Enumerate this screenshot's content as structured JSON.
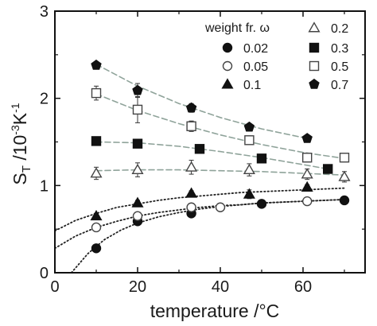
{
  "chart_data": {
    "type": "scatter",
    "title": "",
    "xlabel": "temperature /°C",
    "ylabel": {
      "main": "S",
      "sub": "T",
      "unit_a": " /10",
      "sup_a": "-3",
      "unit_b": "K",
      "sup_b": "-1"
    },
    "xlim": [
      0,
      75
    ],
    "ylim": [
      0,
      3
    ],
    "xticks": [
      0,
      20,
      40,
      60
    ],
    "yticks": [
      0,
      1,
      2,
      3
    ],
    "grid": false,
    "legend_title": "weight fr. ω",
    "legend_position": "top-right",
    "series": [
      {
        "name": "0.02",
        "marker": "circle-filled",
        "x": [
          10,
          20,
          33,
          50,
          70
        ],
        "y": [
          0.28,
          0.59,
          0.68,
          0.79,
          0.83
        ],
        "yerr": [
          0.02,
          0.03,
          0.03,
          0.03,
          0.03
        ],
        "fit": {
          "style": "dotted",
          "color": "#222222",
          "x": [
            4,
            8,
            12,
            16,
            20,
            25,
            30,
            35,
            40,
            45,
            50,
            55,
            60,
            65,
            70
          ],
          "y": [
            0.0,
            0.22,
            0.38,
            0.49,
            0.57,
            0.64,
            0.69,
            0.73,
            0.76,
            0.78,
            0.8,
            0.81,
            0.82,
            0.83,
            0.84
          ]
        }
      },
      {
        "name": "0.05",
        "marker": "circle-open",
        "x": [
          10,
          20,
          33,
          40,
          61
        ],
        "y": [
          0.52,
          0.65,
          0.75,
          0.75,
          0.82
        ],
        "yerr": [
          0.03,
          0.03,
          0.03,
          0.03,
          0.04
        ],
        "fit": {
          "style": "dotted",
          "color": "#222222",
          "x": [
            0,
            5,
            10,
            15,
            20,
            25,
            30,
            35,
            40,
            45,
            50,
            55,
            60,
            65,
            70
          ],
          "y": [
            0.28,
            0.42,
            0.52,
            0.59,
            0.65,
            0.69,
            0.72,
            0.75,
            0.77,
            0.78,
            0.8,
            0.81,
            0.82,
            0.83,
            0.84
          ]
        }
      },
      {
        "name": "0.1",
        "marker": "triangle-filled",
        "x": [
          10,
          20,
          33,
          47,
          61
        ],
        "y": [
          0.65,
          0.8,
          0.91,
          0.9,
          0.98
        ],
        "yerr": [
          0.03,
          0.03,
          0.03,
          0.05,
          0.03
        ],
        "fit": {
          "style": "dotted",
          "color": "#222222",
          "x": [
            0,
            5,
            10,
            15,
            20,
            25,
            30,
            35,
            40,
            45,
            50,
            55,
            60,
            65,
            70
          ],
          "y": [
            0.48,
            0.6,
            0.68,
            0.75,
            0.79,
            0.83,
            0.86,
            0.88,
            0.9,
            0.92,
            0.93,
            0.94,
            0.95,
            0.96,
            0.97
          ]
        }
      },
      {
        "name": "0.2",
        "marker": "triangle-open",
        "x": [
          10,
          20,
          33,
          47,
          61,
          70
        ],
        "y": [
          1.14,
          1.18,
          1.21,
          1.18,
          1.13,
          1.1
        ],
        "yerr": [
          0.07,
          0.08,
          0.08,
          0.07,
          0.06,
          0.06
        ],
        "fit": {
          "style": "dashed",
          "color": "#8fa39a",
          "x": [
            10,
            20,
            30,
            40,
            50,
            60,
            70
          ],
          "y": [
            1.17,
            1.18,
            1.18,
            1.17,
            1.16,
            1.14,
            1.12
          ]
        }
      },
      {
        "name": "0.3",
        "marker": "square-filled",
        "x": [
          10,
          20,
          35,
          50,
          66
        ],
        "y": [
          1.51,
          1.48,
          1.42,
          1.31,
          1.19
        ],
        "yerr": [
          0.02,
          0.02,
          0.03,
          0.03,
          0.03
        ],
        "fit": {
          "style": "dashed",
          "color": "#8fa39a",
          "x": [
            10,
            20,
            30,
            40,
            50,
            60,
            66
          ],
          "y": [
            1.5,
            1.49,
            1.45,
            1.39,
            1.32,
            1.24,
            1.19
          ]
        }
      },
      {
        "name": "0.5",
        "marker": "square-open",
        "x": [
          10,
          20,
          33,
          47,
          61,
          70
        ],
        "y": [
          2.06,
          1.87,
          1.68,
          1.52,
          1.32,
          1.32
        ],
        "yerr": [
          0.08,
          0.15,
          0.06,
          0.05,
          0.04,
          0.04
        ],
        "fit": {
          "style": "dashed",
          "color": "#8fa39a",
          "x": [
            10,
            20,
            30,
            40,
            50,
            60,
            70
          ],
          "y": [
            2.05,
            1.86,
            1.71,
            1.58,
            1.47,
            1.38,
            1.31
          ]
        }
      },
      {
        "name": "0.7",
        "marker": "pentagon-filled",
        "x": [
          10,
          20,
          33,
          47,
          61
        ],
        "y": [
          2.38,
          2.09,
          1.89,
          1.67,
          1.54
        ],
        "yerr": [
          0.04,
          0.08,
          0.05,
          0.03,
          0.03
        ],
        "fit": {
          "style": "dashed",
          "color": "#8fa39a",
          "x": [
            10,
            20,
            30,
            40,
            50,
            61
          ],
          "y": [
            2.39,
            2.14,
            1.94,
            1.78,
            1.65,
            1.54
          ]
        }
      }
    ]
  }
}
